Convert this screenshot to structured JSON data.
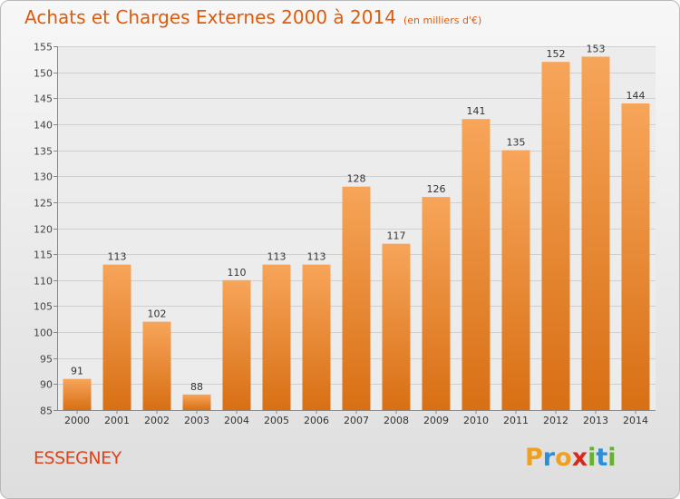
{
  "header": {
    "title": "Achats et Charges Externes 2000 à 2014",
    "unit": "(en milliers d'€)"
  },
  "footer": {
    "commune": "ESSEGNEY",
    "logo": {
      "text": "Proxiti",
      "letter_colors": [
        "#f0a020",
        "#2a8fd8",
        "#f0a020",
        "#d52b1e",
        "#66b22e",
        "#2a8fd8",
        "#66b22e"
      ]
    }
  },
  "colors": {
    "bar_top": "#f7a55a",
    "bar_bottom": "#d86f14",
    "title": "#e05a0a",
    "commune": "#e0431a"
  },
  "chart_data": {
    "type": "bar",
    "title": "Achats et Charges Externes 2000 à 2014",
    "categories": [
      "2000",
      "2001",
      "2002",
      "2003",
      "2004",
      "2005",
      "2006",
      "2007",
      "2008",
      "2009",
      "2010",
      "2011",
      "2012",
      "2013",
      "2014"
    ],
    "values": [
      91,
      113,
      102,
      88,
      110,
      113,
      113,
      128,
      117,
      126,
      141,
      135,
      152,
      153,
      144
    ],
    "ylim": [
      85,
      155
    ],
    "yticks": [
      85,
      90,
      95,
      100,
      105,
      110,
      115,
      120,
      125,
      130,
      135,
      140,
      145,
      150,
      155
    ],
    "grid": true,
    "xlabel": "",
    "ylabel": ""
  }
}
